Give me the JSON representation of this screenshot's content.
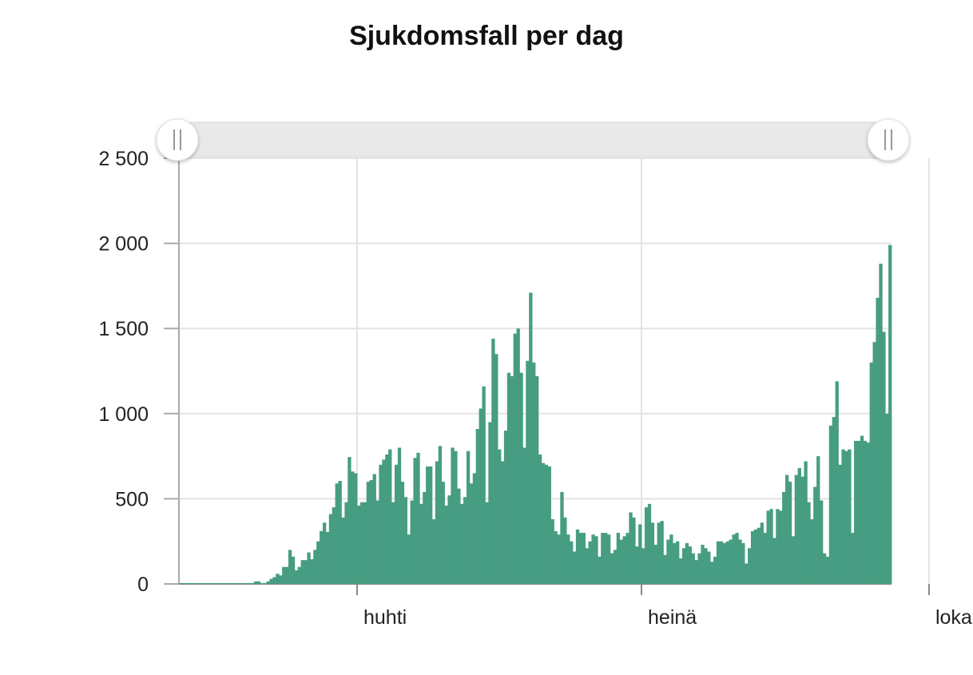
{
  "chart_data": {
    "type": "bar",
    "title": "Sjukdomsfall per dag",
    "xlabel": "",
    "ylabel": "",
    "ylim": [
      0,
      2500
    ],
    "y_ticks": [
      "0",
      "500",
      "1 000",
      "1 500",
      "2 000",
      "2 500"
    ],
    "x_ticks": [
      {
        "label": "huhti",
        "day": 57
      },
      {
        "label": "heinä",
        "day": 148
      },
      {
        "label": "loka",
        "day": 240
      }
    ],
    "grid": true,
    "range_slider": true,
    "series": [
      {
        "color": "#479d82",
        "values": [
          5,
          5,
          5,
          5,
          5,
          5,
          5,
          5,
          5,
          5,
          5,
          5,
          5,
          5,
          5,
          5,
          5,
          5,
          5,
          5,
          5,
          5,
          5,
          5,
          15,
          15,
          5,
          5,
          15,
          30,
          40,
          60,
          50,
          100,
          100,
          200,
          160,
          80,
          100,
          140,
          140,
          185,
          145,
          200,
          250,
          310,
          360,
          305,
          410,
          450,
          590,
          605,
          390,
          480,
          745,
          660,
          650,
          460,
          480,
          480,
          600,
          610,
          645,
          490,
          700,
          730,
          760,
          790,
          480,
          700,
          800,
          600,
          510,
          290,
          490,
          740,
          770,
          470,
          540,
          690,
          690,
          380,
          720,
          810,
          600,
          460,
          520,
          800,
          780,
          560,
          470,
          510,
          780,
          590,
          650,
          910,
          1030,
          1160,
          480,
          950,
          1440,
          1350,
          790,
          720,
          900,
          1240,
          1220,
          1470,
          1500,
          1240,
          800,
          1310,
          1710,
          1300,
          1220,
          760,
          710,
          700,
          690,
          380,
          310,
          290,
          540,
          390,
          290,
          250,
          190,
          320,
          300,
          300,
          210,
          250,
          290,
          280,
          160,
          300,
          300,
          290,
          180,
          200,
          300,
          260,
          280,
          300,
          420,
          390,
          220,
          350,
          210,
          450,
          470,
          360,
          230,
          360,
          370,
          170,
          260,
          290,
          240,
          250,
          150,
          210,
          240,
          220,
          180,
          140,
          180,
          230,
          210,
          190,
          130,
          160,
          250,
          250,
          240,
          250,
          260,
          290,
          300,
          260,
          240,
          120,
          210,
          310,
          320,
          330,
          360,
          300,
          430,
          440,
          270,
          440,
          430,
          540,
          640,
          600,
          280,
          640,
          680,
          630,
          720,
          480,
          380,
          570,
          750,
          490,
          180,
          160,
          930,
          980,
          1190,
          700,
          790,
          780,
          790,
          300,
          840,
          840,
          870,
          840,
          830,
          1300,
          1420,
          1680,
          1880,
          1480,
          1000,
          1990
        ]
      }
    ]
  }
}
